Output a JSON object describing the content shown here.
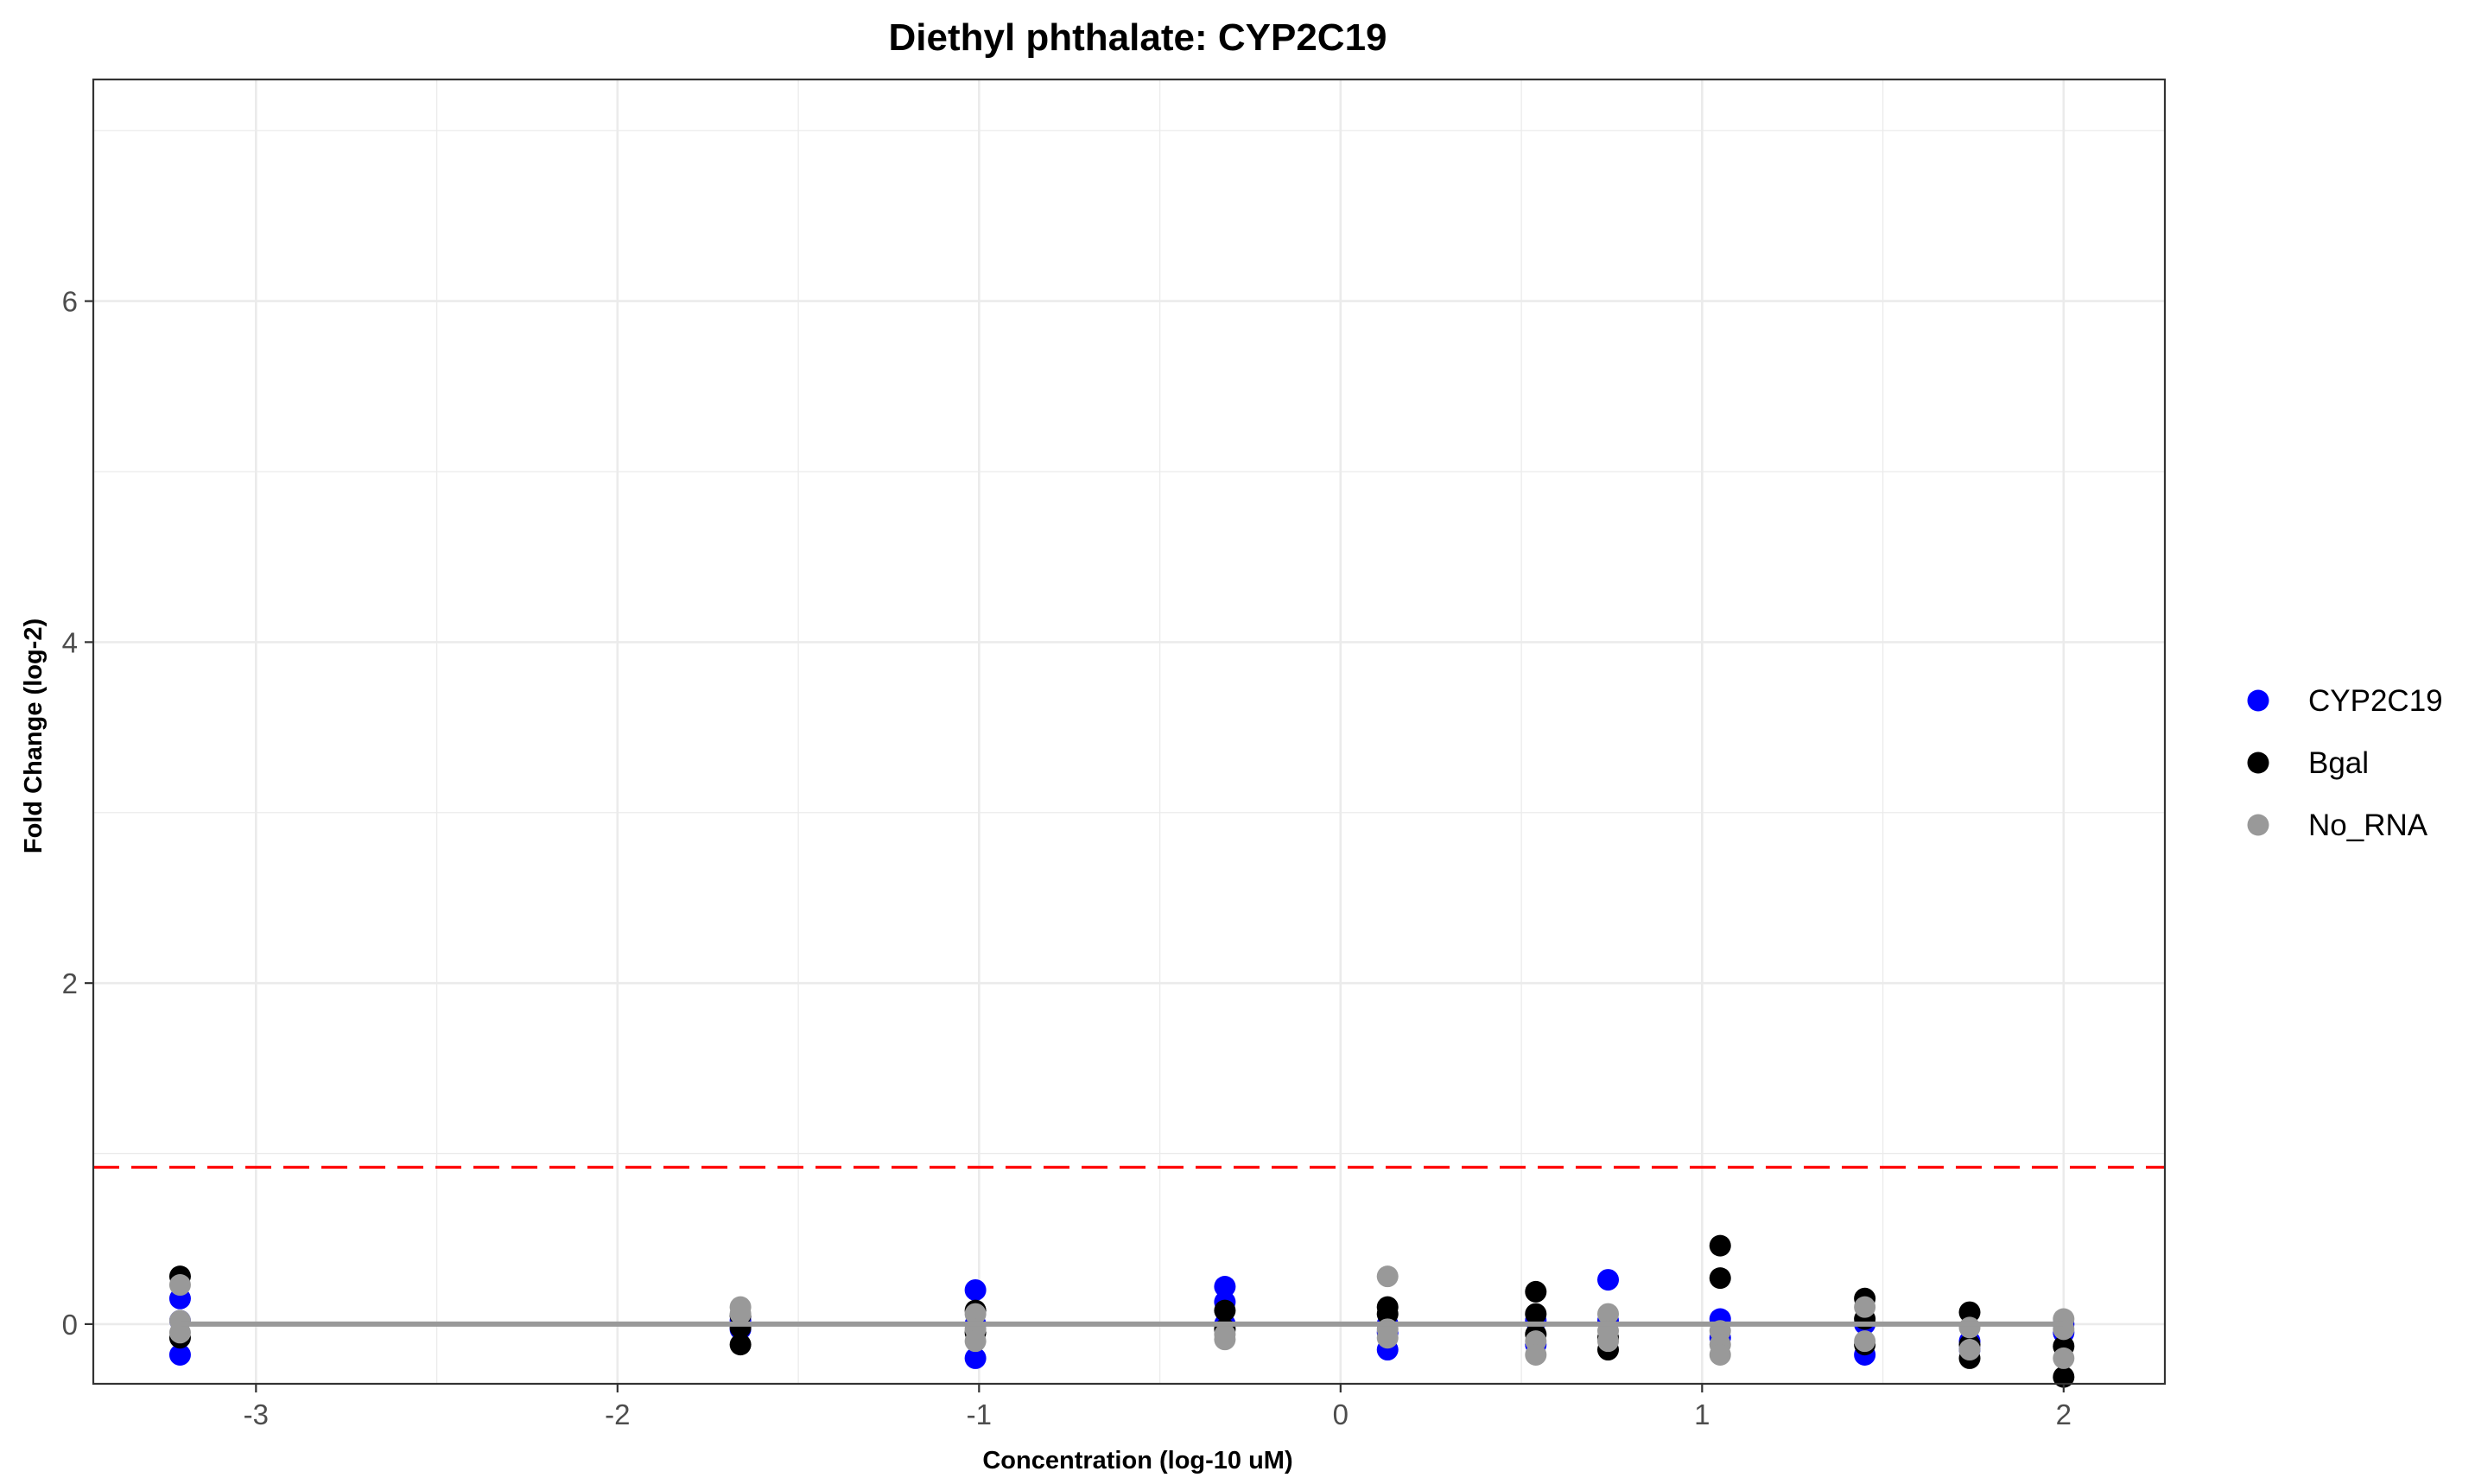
{
  "chart_data": {
    "type": "scatter",
    "title": "Diethyl phthalate: CYP2C19",
    "xlabel": "Concentration (log-10 uM)",
    "ylabel": "Fold Change (log-2)",
    "xlim": [
      -3.45,
      2.28
    ],
    "ylim": [
      -0.35,
      7.3
    ],
    "x_ticks": [
      -3,
      -2,
      -1,
      0,
      1,
      2
    ],
    "y_ticks": [
      0,
      2,
      4,
      6
    ],
    "grid": true,
    "legend_position": "right",
    "threshold_line": {
      "y": 0.92,
      "color": "#ff0000",
      "style": "dashed"
    },
    "baseline_line": {
      "y": 0,
      "color": "#999999"
    },
    "series": [
      {
        "name": "CYP2C19",
        "color": "#0000ff",
        "points": [
          [
            -3.21,
            0.15
          ],
          [
            -3.21,
            -0.18
          ],
          [
            -3.21,
            0.02
          ],
          [
            -1.66,
            0.02
          ],
          [
            -1.66,
            -0.03
          ],
          [
            -1.01,
            0.2
          ],
          [
            -1.01,
            -0.2
          ],
          [
            -1.01,
            0.0
          ],
          [
            -0.32,
            0.22
          ],
          [
            -0.32,
            0.13
          ],
          [
            -0.32,
            0.0
          ],
          [
            0.13,
            -0.15
          ],
          [
            0.13,
            0.0
          ],
          [
            0.13,
            -0.05
          ],
          [
            0.54,
            -0.12
          ],
          [
            0.54,
            0.02
          ],
          [
            0.74,
            0.26
          ],
          [
            0.74,
            0.02
          ],
          [
            1.05,
            0.03
          ],
          [
            1.05,
            -0.08
          ],
          [
            1.45,
            -0.18
          ],
          [
            1.45,
            0.0
          ],
          [
            1.74,
            -0.1
          ],
          [
            1.74,
            -0.15
          ],
          [
            2.0,
            0.0
          ],
          [
            2.0,
            -0.05
          ]
        ]
      },
      {
        "name": "Bgal",
        "color": "#000000",
        "points": [
          [
            -3.21,
            0.28
          ],
          [
            -3.21,
            -0.08
          ],
          [
            -1.66,
            0.05
          ],
          [
            -1.66,
            -0.12
          ],
          [
            -1.66,
            -0.02
          ],
          [
            -1.01,
            0.08
          ],
          [
            -1.01,
            -0.05
          ],
          [
            -0.32,
            0.08
          ],
          [
            -0.32,
            -0.03
          ],
          [
            0.13,
            0.1
          ],
          [
            0.13,
            0.06
          ],
          [
            0.54,
            0.19
          ],
          [
            0.54,
            0.06
          ],
          [
            0.54,
            -0.06
          ],
          [
            0.74,
            -0.15
          ],
          [
            0.74,
            -0.08
          ],
          [
            1.05,
            0.46
          ],
          [
            1.05,
            0.27
          ],
          [
            1.45,
            0.15
          ],
          [
            1.45,
            0.03
          ],
          [
            1.45,
            -0.12
          ],
          [
            1.74,
            0.07
          ],
          [
            1.74,
            -0.12
          ],
          [
            1.74,
            -0.2
          ],
          [
            2.0,
            -0.13
          ],
          [
            2.0,
            -0.31
          ]
        ]
      },
      {
        "name": "No_RNA",
        "color": "#999999",
        "points": [
          [
            -3.21,
            0.23
          ],
          [
            -3.21,
            0.02
          ],
          [
            -3.21,
            -0.05
          ],
          [
            -1.66,
            0.1
          ],
          [
            -1.66,
            0.06
          ],
          [
            -1.01,
            0.06
          ],
          [
            -1.01,
            -0.03
          ],
          [
            -1.01,
            -0.1
          ],
          [
            -0.32,
            -0.06
          ],
          [
            -0.32,
            -0.09
          ],
          [
            0.13,
            0.28
          ],
          [
            0.13,
            -0.03
          ],
          [
            0.13,
            -0.08
          ],
          [
            0.54,
            -0.1
          ],
          [
            0.54,
            -0.18
          ],
          [
            0.74,
            0.06
          ],
          [
            0.74,
            -0.04
          ],
          [
            0.74,
            -0.1
          ],
          [
            1.05,
            -0.04
          ],
          [
            1.05,
            -0.12
          ],
          [
            1.05,
            -0.18
          ],
          [
            1.45,
            0.1
          ],
          [
            1.45,
            -0.1
          ],
          [
            1.74,
            -0.02
          ],
          [
            1.74,
            -0.15
          ],
          [
            2.0,
            0.03
          ],
          [
            2.0,
            -0.03
          ],
          [
            2.0,
            -0.2
          ]
        ]
      }
    ]
  }
}
